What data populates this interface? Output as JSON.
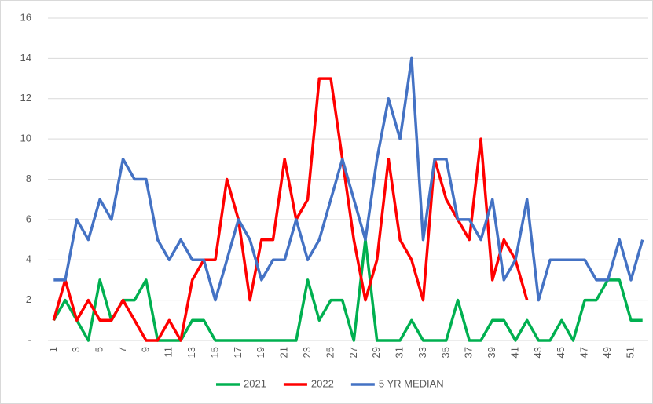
{
  "chart_data": {
    "type": "line",
    "categories": [
      1,
      null,
      3,
      null,
      5,
      null,
      7,
      null,
      9,
      null,
      11,
      null,
      13,
      null,
      15,
      null,
      17,
      null,
      19,
      null,
      21,
      null,
      23,
      null,
      25,
      null,
      27,
      null,
      29,
      null,
      31,
      null,
      33,
      null,
      35,
      null,
      37,
      null,
      39,
      null,
      41,
      null,
      43,
      null,
      45,
      null,
      47,
      null,
      49,
      null,
      51,
      null
    ],
    "series": [
      {
        "name": "2021",
        "color": "#00b050",
        "values": [
          1,
          2,
          1,
          0,
          3,
          1,
          2,
          2,
          3,
          0,
          0,
          0,
          1,
          1,
          0,
          0,
          0,
          0,
          0,
          0,
          0,
          0,
          3,
          1,
          2,
          2,
          0,
          5,
          0,
          0,
          0,
          1,
          0,
          0,
          0,
          2,
          0,
          0,
          1,
          1,
          0,
          1,
          0,
          0,
          1,
          0,
          2,
          2,
          3,
          3,
          1,
          1
        ]
      },
      {
        "name": "2022",
        "color": "#ff0000",
        "values": [
          1,
          3,
          1,
          2,
          1,
          1,
          2,
          1,
          0,
          0,
          1,
          0,
          3,
          4,
          4,
          8,
          6,
          2,
          5,
          5,
          9,
          6,
          7,
          13,
          13,
          9,
          5,
          2,
          4,
          9,
          5,
          4,
          2,
          9,
          7,
          6,
          5,
          10,
          3,
          5,
          4,
          2,
          null,
          null,
          null,
          null,
          null,
          null,
          null,
          null,
          null,
          null
        ]
      },
      {
        "name": "5 YR MEDIAN",
        "color": "#4472c4",
        "values": [
          3,
          3,
          6,
          5,
          7,
          6,
          9,
          8,
          8,
          5,
          4,
          5,
          4,
          4,
          2,
          4,
          6,
          5,
          3,
          4,
          4,
          6,
          4,
          5,
          7,
          9,
          7,
          5,
          9,
          12,
          10,
          14,
          5,
          9,
          9,
          6,
          6,
          5,
          7,
          3,
          4,
          7,
          2,
          4,
          4,
          4,
          4,
          3,
          3,
          5,
          3,
          5
        ]
      }
    ],
    "ylim": [
      0,
      16
    ],
    "yticks": [
      {
        "value": 0,
        "label": "-"
      },
      2,
      4,
      6,
      8,
      10,
      12,
      14,
      16
    ],
    "grid": true,
    "legend": "bottom"
  }
}
